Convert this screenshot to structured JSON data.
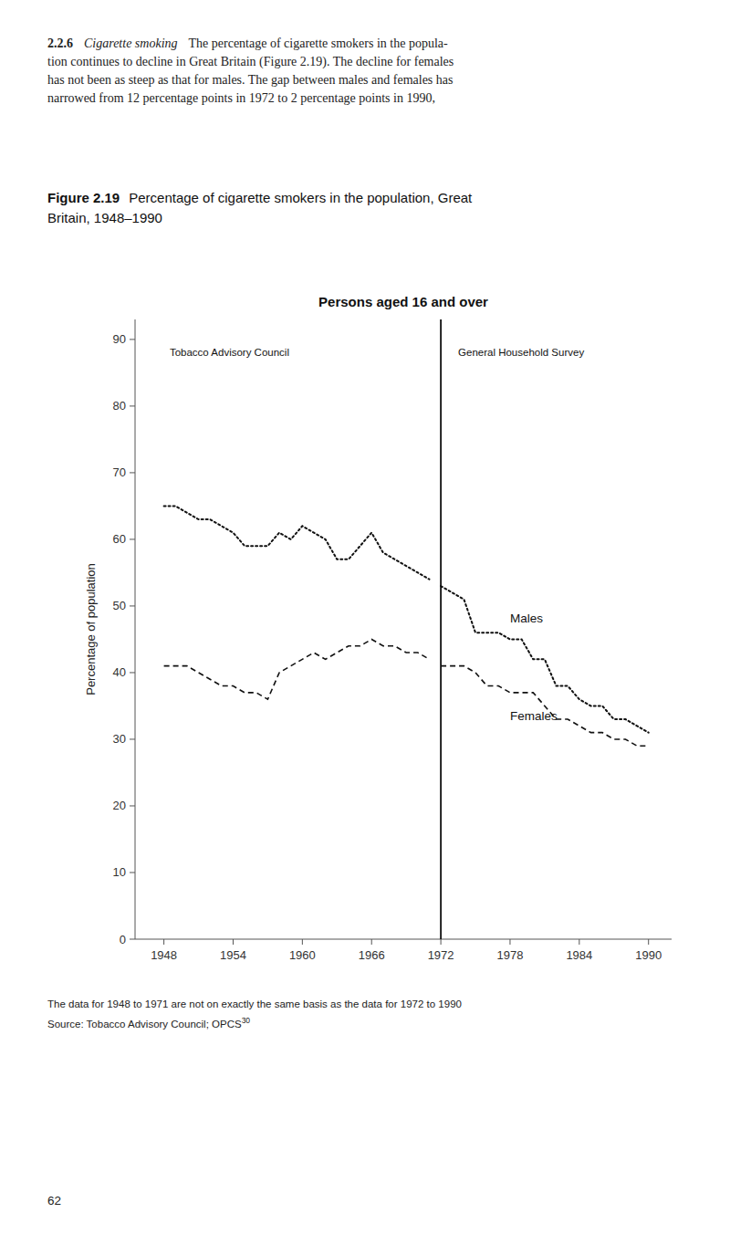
{
  "chart_data": {
    "type": "line",
    "intro": {
      "number": "2.2.6",
      "heading": "Cigarette smoking",
      "lines": [
        "The percentage of cigarette smokers in the popula-",
        "tion continues to decline in Great Britain (Figure 2.19). The decline for females",
        "has not been as steep as that for males. The gap between males and females has",
        "narrowed from 12 percentage points in 1972 to 2 percentage points in 1990,"
      ]
    },
    "figure_label": "Figure 2.19",
    "title": [
      "Percentage of cigarette smokers in the population, Great",
      "Britain, 1948–1990"
    ],
    "subtitle": "Persons aged 16 and over",
    "y_label": "Percentage of population",
    "xlim": [
      1945.5,
      1992
    ],
    "xticks": [
      1948,
      1954,
      1960,
      1966,
      1972,
      1978,
      1984,
      1990
    ],
    "ylim": [
      0,
      93
    ],
    "yticks": [
      0,
      10,
      20,
      30,
      40,
      50,
      60,
      70,
      80,
      90
    ],
    "grid": false,
    "divider": 1972,
    "annotations": [
      {
        "text": "Tobacco Advisory Council",
        "x": 1948.5,
        "y": 89
      },
      {
        "text": "General Household Survey",
        "x": 1973.5,
        "y": 89
      }
    ],
    "series": [
      {
        "name": "Males",
        "color": "#111111",
        "line_style": "dotted",
        "x": [
          1948,
          1949,
          1950,
          1951,
          1952,
          1953,
          1954,
          1955,
          1956,
          1957,
          1958,
          1959,
          1960,
          1961,
          1962,
          1963,
          1964,
          1965,
          1966,
          1967,
          1968,
          1969,
          1970,
          1971,
          1972,
          1973,
          1974,
          1975,
          1976,
          1977,
          1978,
          1979,
          1980,
          1981,
          1982,
          1983,
          1984,
          1985,
          1986,
          1987,
          1988,
          1989,
          1990
        ],
        "values": [
          65,
          65,
          64,
          63,
          63,
          62,
          61,
          59,
          59,
          59,
          61,
          60,
          62,
          61,
          60,
          57,
          57,
          59,
          61,
          58,
          57,
          56,
          55,
          54,
          53,
          52,
          51,
          46,
          46,
          46,
          45,
          45,
          42,
          42,
          38,
          38,
          36,
          35,
          35,
          33,
          33,
          32,
          31
        ]
      },
      {
        "name": "Females",
        "color": "#111111",
        "line_style": "dashed",
        "x": [
          1948,
          1949,
          1950,
          1951,
          1952,
          1953,
          1954,
          1955,
          1956,
          1957,
          1958,
          1959,
          1960,
          1961,
          1962,
          1963,
          1964,
          1965,
          1966,
          1967,
          1968,
          1969,
          1970,
          1971,
          1972,
          1973,
          1974,
          1975,
          1976,
          1977,
          1978,
          1979,
          1980,
          1981,
          1982,
          1983,
          1984,
          1985,
          1986,
          1987,
          1988,
          1989,
          1990
        ],
        "values": [
          41,
          41,
          41,
          40,
          39,
          38,
          38,
          37,
          37,
          36,
          40,
          41,
          42,
          43,
          42,
          43,
          44,
          44,
          45,
          44,
          44,
          43,
          43,
          42,
          41,
          41,
          41,
          40,
          38,
          38,
          37,
          37,
          37,
          35,
          33,
          33,
          32,
          31,
          31,
          30,
          30,
          29,
          29
        ]
      }
    ],
    "footnote": "The data for 1948 to 1971 are not on exactly the same basis as the data for 1972 to 1990",
    "source": "Source: Tobacco Advisory Council; OPCS",
    "source_ref": "30",
    "page": "62"
  }
}
